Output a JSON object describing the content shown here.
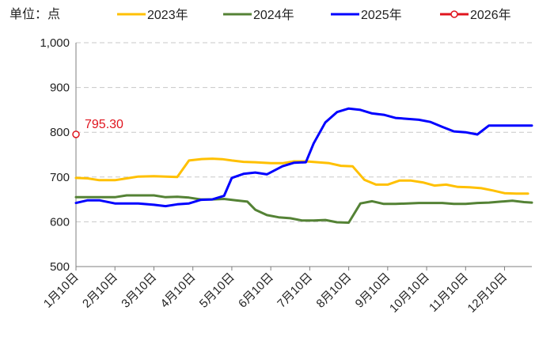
{
  "chart_data": {
    "type": "line",
    "unit_label": "单位：点",
    "ylim": [
      500,
      1000
    ],
    "y_ticks": [
      500,
      600,
      700,
      800,
      900,
      1000
    ],
    "y_tick_labels": [
      "500",
      "600",
      "700",
      "800",
      "900",
      "1,000"
    ],
    "x_range": [
      0,
      11.7
    ],
    "x_ticks": [
      0,
      1,
      2,
      3,
      4,
      5,
      6,
      7,
      8,
      9,
      10,
      11
    ],
    "x_tick_labels": [
      "1月10日",
      "2月10日",
      "3月10日",
      "4月10日",
      "5月10日",
      "6月10日",
      "7月10日",
      "8月10日",
      "9月10日",
      "10月10日",
      "11月10日",
      "12月10日"
    ],
    "grid": true,
    "legend_position": "top",
    "series": [
      {
        "name": "2023年",
        "color": "#ffc000",
        "x": [
          0,
          0.3,
          0.6,
          1.0,
          1.3,
          1.6,
          2.0,
          2.3,
          2.6,
          2.9,
          3.2,
          3.5,
          3.75,
          4.0,
          4.3,
          4.6,
          5.0,
          5.3,
          5.6,
          5.9,
          6.2,
          6.5,
          6.8,
          7.1,
          7.4,
          7.7,
          8.0,
          8.3,
          8.6,
          8.9,
          9.2,
          9.5,
          9.8,
          10.1,
          10.4,
          10.7,
          11.0,
          11.3,
          11.6
        ],
        "y": [
          698,
          697,
          693,
          693,
          697,
          701,
          702,
          701,
          700,
          737,
          740,
          741,
          740,
          737,
          734,
          733,
          731,
          731,
          735,
          735,
          733,
          731,
          725,
          724,
          694,
          683,
          683,
          692,
          692,
          688,
          681,
          683,
          678,
          677,
          675,
          670,
          664,
          663,
          663
        ]
      },
      {
        "name": "2024年",
        "color": "#548235",
        "x": [
          0,
          0.3,
          0.6,
          1.0,
          1.3,
          1.6,
          2.0,
          2.3,
          2.6,
          2.9,
          3.2,
          3.5,
          3.8,
          4.1,
          4.4,
          4.6,
          4.9,
          5.2,
          5.5,
          5.8,
          6.1,
          6.4,
          6.7,
          7.0,
          7.3,
          7.6,
          7.9,
          8.2,
          8.5,
          8.8,
          9.1,
          9.4,
          9.7,
          10.0,
          10.3,
          10.6,
          10.9,
          11.2,
          11.5,
          11.7
        ],
        "y": [
          655,
          655,
          655,
          655,
          659,
          659,
          659,
          655,
          656,
          654,
          650,
          650,
          651,
          648,
          645,
          627,
          615,
          610,
          608,
          603,
          603,
          604,
          599,
          598,
          641,
          646,
          640,
          640,
          641,
          642,
          642,
          642,
          640,
          640,
          642,
          643,
          645,
          647,
          644,
          643
        ]
      },
      {
        "name": "2025年",
        "color": "#0000ff",
        "x": [
          0,
          0.3,
          0.6,
          1.0,
          1.3,
          1.6,
          2.0,
          2.3,
          2.6,
          2.9,
          3.2,
          3.5,
          3.8,
          4.0,
          4.3,
          4.6,
          4.9,
          5.3,
          5.6,
          5.9,
          6.1,
          6.4,
          6.7,
          7.0,
          7.3,
          7.6,
          7.9,
          8.2,
          8.5,
          8.8,
          9.1,
          9.4,
          9.7,
          10.0,
          10.3,
          10.6,
          10.9,
          11.2,
          11.5,
          11.7
        ],
        "y": [
          642,
          648,
          648,
          641,
          641,
          641,
          638,
          635,
          639,
          641,
          649,
          650,
          658,
          698,
          707,
          710,
          706,
          724,
          732,
          733,
          775,
          822,
          845,
          853,
          850,
          842,
          839,
          832,
          830,
          828,
          823,
          812,
          802,
          800,
          795,
          815,
          815,
          815,
          815,
          815
        ]
      },
      {
        "name": "2026年",
        "color": "#e0141e",
        "x": [
          0
        ],
        "y": [
          795.3
        ],
        "label": "795.30"
      }
    ]
  }
}
